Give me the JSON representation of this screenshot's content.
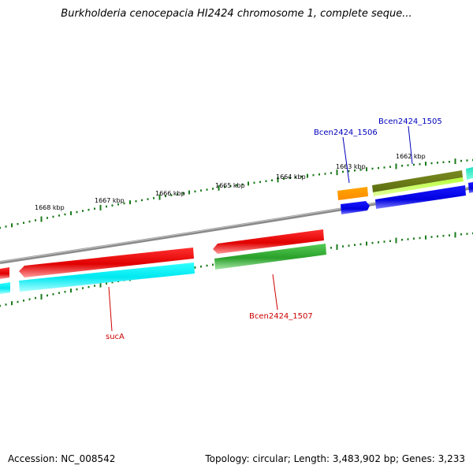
{
  "title": "Burkholderia cenocepacia HI2424 chromosome 1, complete seque...",
  "footer": {
    "accession": "Accession: NC_008542",
    "topology": "Topology: circular; Length: 3,483,902 bp; Genes: 3,233"
  },
  "colors": {
    "tick": "#1a7a1a",
    "backbone": "#808080",
    "label_red": "#cc0000",
    "label_blue": "#0000bb"
  },
  "ticks": [
    "1668 kbp",
    "1667 kbp",
    "1666 kbp",
    "1665 kbp",
    "1664 kbp",
    "1663 kbp",
    "1662 kbp"
  ],
  "genes": [
    {
      "name": "sucA",
      "color": "red"
    },
    {
      "name": "Bcen2424_1507",
      "color": "red"
    },
    {
      "name": "Bcen2424_1506",
      "color": "blue"
    },
    {
      "name": "Bcen2424_1505",
      "color": "blue"
    }
  ]
}
